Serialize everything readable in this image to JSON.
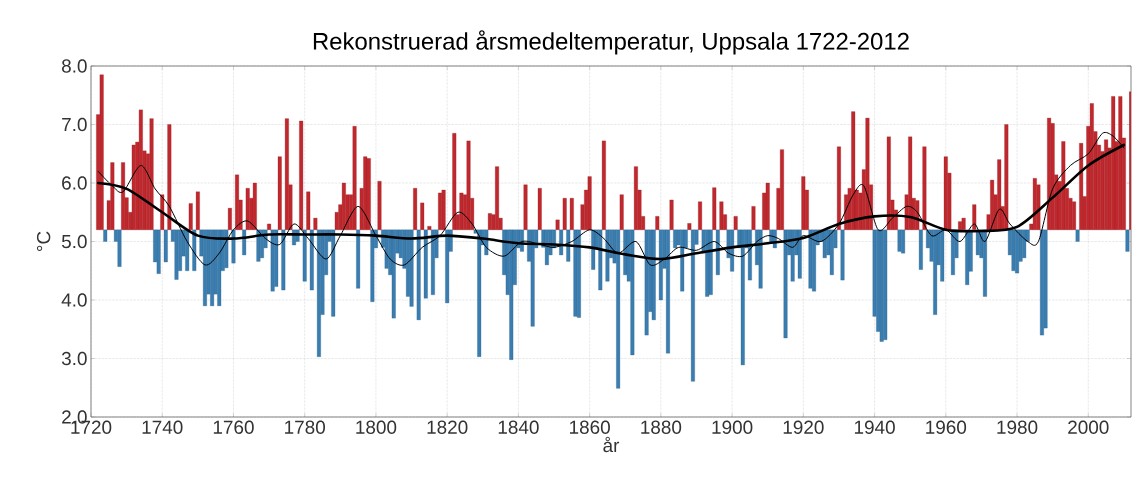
{
  "chart_data": {
    "type": "bar",
    "title": "Rekonstruerad årsmedeltemperatur, Uppsala 1722-2012",
    "xlabel": "år",
    "ylabel": "°C",
    "xlim": [
      1720,
      2012
    ],
    "ylim": [
      2,
      8
    ],
    "xticks": [
      1720,
      1740,
      1760,
      1780,
      1800,
      1820,
      1840,
      1860,
      1880,
      1900,
      1920,
      1940,
      1960,
      1980,
      2000
    ],
    "yticks": [
      {
        "value": 2,
        "label": "2.0"
      },
      {
        "value": 3,
        "label": "3.0"
      },
      {
        "value": 4,
        "label": "4.0"
      },
      {
        "value": 5,
        "label": "5.0"
      },
      {
        "value": 6,
        "label": "6.0"
      },
      {
        "value": 7,
        "label": "7.0"
      },
      {
        "value": 8,
        "label": "8.0"
      }
    ],
    "grid": true,
    "series": [
      {
        "color": "#c0282d",
        "x": [
          1722,
          1723,
          1725,
          1726,
          1729,
          1730,
          1731,
          1732,
          1733,
          1734,
          1735,
          1736,
          1737,
          1740,
          1742,
          1748,
          1750,
          1759,
          1761,
          1762,
          1764,
          1765,
          1766,
          1770,
          1773,
          1775,
          1776,
          1779,
          1781,
          1783,
          1789,
          1790,
          1791,
          1792,
          1793,
          1794,
          1796,
          1797,
          1798,
          1801,
          1811,
          1813,
          1815,
          1818,
          1819,
          1822,
          1823,
          1824,
          1825,
          1826,
          1827,
          1832,
          1833,
          1834,
          1835,
          1842,
          1846,
          1851,
          1853,
          1855,
          1858,
          1859,
          1860,
          1864,
          1869,
          1873,
          1874,
          1875,
          1879,
          1883,
          1888,
          1891,
          1895,
          1897,
          1898,
          1901,
          1906,
          1909,
          1910,
          1913,
          1914,
          1920,
          1921,
          1930,
          1932,
          1933,
          1934,
          1935,
          1936,
          1937,
          1938,
          1939,
          1944,
          1945,
          1946,
          1949,
          1950,
          1951,
          1952,
          1954,
          1960,
          1961,
          1964,
          1965,
          1968,
          1972,
          1973,
          1974,
          1975,
          1976,
          1977,
          1984,
          1985,
          1986,
          1989,
          1990,
          1991,
          1992,
          1993,
          1994,
          1995,
          1996,
          1998,
          1999,
          2000,
          2001,
          2002,
          2003,
          2004,
          2005,
          2006,
          2007,
          2008,
          2009,
          2010,
          2012
        ],
        "values": [
          1.97,
          2.65,
          0.5,
          1.15,
          1.15,
          0.55,
          0.3,
          1.45,
          1.5,
          2.05,
          1.35,
          1.3,
          1.9,
          0.6,
          1.8,
          0.45,
          0.65,
          0.37,
          0.94,
          0.51,
          0.71,
          0.54,
          0.8,
          0.1,
          1.25,
          1.9,
          0.77,
          1.86,
          0.65,
          0.2,
          0.3,
          0.43,
          0.8,
          0.6,
          0.6,
          1.77,
          0.71,
          1.25,
          1.22,
          0.83,
          0.71,
          0.46,
          0.06,
          0.63,
          0.68,
          1.65,
          0.26,
          0.63,
          0.6,
          1.52,
          0.54,
          0.28,
          0.26,
          1.08,
          0.2,
          0.77,
          0.71,
          0.17,
          0.54,
          0.54,
          0.43,
          0.68,
          0.91,
          1.52,
          0.6,
          1.08,
          0.68,
          0.23,
          0.23,
          0.51,
          0.11,
          0.48,
          0.72,
          0.48,
          0.26,
          0.23,
          0.4,
          0.63,
          0.8,
          0.71,
          1.37,
          0.91,
          0.68,
          1.42,
          0.6,
          0.71,
          2.02,
          0.68,
          0.63,
          1.03,
          1.91,
          0.77,
          1.59,
          0.51,
          0.34,
          0.6,
          1.59,
          0.54,
          0.5,
          1.42,
          1.25,
          0.97,
          0.14,
          0.2,
          0.43,
          0.26,
          0.85,
          0.6,
          1.2,
          0.4,
          1.8,
          0.1,
          0.88,
          0.77,
          1.91,
          1.82,
          0.94,
          0.83,
          1.51,
          0.71,
          0.54,
          0.48,
          1.48,
          0.57,
          1.77,
          2.16,
          1.68,
          1.45,
          1.34,
          1.54,
          1.4,
          2.28,
          1.51,
          2.28,
          1.57,
          2.36
        ],
        "base": [
          5.2,
          5.2,
          5.2,
          5.2,
          5.2,
          5.2,
          5.2,
          5.2,
          5.2,
          5.2,
          5.2,
          5.2,
          5.2,
          5.2,
          5.2,
          5.2,
          5.2,
          5.2,
          5.2,
          5.2,
          5.2,
          5.2,
          5.2,
          5.2,
          5.2,
          5.2,
          5.2,
          5.2,
          5.2,
          5.2,
          5.2,
          5.2,
          5.2,
          5.2,
          5.2,
          5.2,
          5.2,
          5.2,
          5.2,
          5.2,
          5.2,
          5.2,
          5.2,
          5.2,
          5.2,
          5.2,
          5.2,
          5.2,
          5.2,
          5.2,
          5.2,
          5.2,
          5.2,
          5.2,
          5.2,
          5.2,
          5.2,
          5.2,
          5.2,
          5.2,
          5.2,
          5.2,
          5.2,
          5.2,
          5.2,
          5.2,
          5.2,
          5.2,
          5.2,
          5.2,
          5.2,
          5.2,
          5.2,
          5.2,
          5.2,
          5.2,
          5.2,
          5.2,
          5.2,
          5.2,
          5.2,
          5.2,
          5.2,
          5.2,
          5.2,
          5.2,
          5.2,
          5.2,
          5.2,
          5.2,
          5.2,
          5.2,
          5.2,
          5.2,
          5.2,
          5.2,
          5.2,
          5.2,
          5.2,
          5.2,
          5.2,
          5.2,
          5.2,
          5.2,
          5.2,
          5.2,
          5.2,
          5.2,
          5.2,
          5.2,
          5.2,
          5.2,
          5.2,
          5.2,
          5.2,
          5.2,
          5.2,
          5.2,
          5.2,
          5.2,
          5.2,
          5.2,
          5.2,
          5.2,
          5.2,
          5.2,
          5.2,
          5.2,
          5.2,
          5.2,
          5.2,
          5.2,
          5.2,
          5.2,
          5.2,
          5.2
        ]
      },
      {
        "color": "#3a7db0",
        "x": [
          1724,
          1727,
          1728,
          1738,
          1739,
          1741,
          1743,
          1744,
          1745,
          1746,
          1747,
          1749,
          1751,
          1752,
          1753,
          1754,
          1755,
          1756,
          1757,
          1758,
          1760,
          1763,
          1767,
          1768,
          1769,
          1771,
          1772,
          1774,
          1777,
          1778,
          1780,
          1782,
          1784,
          1785,
          1786,
          1787,
          1788,
          1795,
          1799,
          1800,
          1802,
          1803,
          1804,
          1805,
          1806,
          1807,
          1808,
          1809,
          1810,
          1812,
          1814,
          1816,
          1817,
          1820,
          1821,
          1828,
          1829,
          1830,
          1831,
          1836,
          1837,
          1838,
          1839,
          1840,
          1841,
          1843,
          1844,
          1845,
          1847,
          1848,
          1849,
          1850,
          1852,
          1854,
          1856,
          1857,
          1861,
          1862,
          1863,
          1865,
          1866,
          1867,
          1868,
          1870,
          1871,
          1872,
          1876,
          1877,
          1878,
          1880,
          1881,
          1882,
          1884,
          1885,
          1886,
          1887,
          1889,
          1890,
          1892,
          1893,
          1894,
          1896,
          1899,
          1900,
          1902,
          1903,
          1904,
          1905,
          1907,
          1908,
          1911,
          1912,
          1915,
          1916,
          1917,
          1918,
          1919,
          1922,
          1923,
          1924,
          1925,
          1926,
          1927,
          1928,
          1929,
          1931,
          1940,
          1941,
          1942,
          1943,
          1947,
          1948,
          1953,
          1955,
          1956,
          1957,
          1958,
          1959,
          1962,
          1963,
          1966,
          1967,
          1969,
          1970,
          1971,
          1978,
          1979,
          1980,
          1981,
          1982,
          1983,
          1987,
          1988,
          1997,
          2011
        ],
        "values": [
          -0.2,
          -0.2,
          -0.63,
          -0.55,
          -0.75,
          -0.55,
          -0.2,
          -0.85,
          -0.7,
          -0.45,
          -0.7,
          -0.7,
          -0.45,
          -1.3,
          -1.1,
          -1.3,
          -1.1,
          -1.3,
          -0.7,
          -0.65,
          -0.57,
          -0.43,
          -0.54,
          -0.48,
          -0.31,
          -1.05,
          -0.97,
          -1.03,
          -0.26,
          -0.2,
          -0.88,
          -1.03,
          -2.17,
          -1.45,
          -0.77,
          -0.2,
          -1.48,
          -1.0,
          -1.23,
          -0.31,
          -0.3,
          -0.66,
          -0.77,
          -1.51,
          -0.4,
          -0.48,
          -0.66,
          -1.14,
          -1.31,
          -1.54,
          -1.17,
          -1.11,
          -0.48,
          -1.25,
          -0.37,
          -0.06,
          -2.17,
          -0.26,
          -0.43,
          -0.77,
          -1.11,
          -2.22,
          -0.94,
          -0.31,
          -0.37,
          -0.54,
          -1.65,
          -0.31,
          -0.3,
          -0.6,
          -0.43,
          -0.31,
          -0.43,
          -0.54,
          -1.48,
          -1.5,
          -0.68,
          -0.31,
          -1.03,
          -0.88,
          -0.48,
          -0.57,
          -2.71,
          -0.77,
          -0.88,
          -2.14,
          -1.8,
          -1.4,
          -1.54,
          -1.2,
          -0.66,
          -2.11,
          -0.31,
          -0.26,
          -1.05,
          -0.31,
          -2.59,
          -0.25,
          -0.4,
          -1.14,
          -1.11,
          -0.77,
          -0.48,
          -0.71,
          -0.31,
          -2.31,
          -0.31,
          -0.86,
          -0.6,
          -1.0,
          -0.23,
          -0.31,
          -1.85,
          -0.43,
          -0.88,
          -0.43,
          -0.83,
          -1.0,
          -1.05,
          -0.26,
          -0.2,
          -0.48,
          -0.43,
          -0.77,
          -0.31,
          -0.86,
          -1.48,
          -1.74,
          -1.91,
          -1.88,
          -0.37,
          -0.4,
          -0.68,
          -0.31,
          -0.54,
          -1.45,
          -0.6,
          -0.88,
          -0.77,
          -0.48,
          -0.94,
          -0.71,
          -0.43,
          -0.48,
          -1.14,
          -0.43,
          -0.7,
          -0.74,
          -0.54,
          -0.48,
          -0.2,
          -1.8,
          -1.68,
          -0.2,
          -0.37
        ],
        "base": [
          5.2,
          5.2,
          5.2,
          5.2,
          5.2,
          5.2,
          5.2,
          5.2,
          5.2,
          5.2,
          5.2,
          5.2,
          5.2,
          5.2,
          5.2,
          5.2,
          5.2,
          5.2,
          5.2,
          5.2,
          5.2,
          5.2,
          5.2,
          5.2,
          5.2,
          5.2,
          5.2,
          5.2,
          5.2,
          5.2,
          5.2,
          5.2,
          5.2,
          5.2,
          5.2,
          5.2,
          5.2,
          5.2,
          5.2,
          5.2,
          5.2,
          5.2,
          5.2,
          5.2,
          5.2,
          5.2,
          5.2,
          5.2,
          5.2,
          5.2,
          5.2,
          5.2,
          5.2,
          5.2,
          5.2,
          5.2,
          5.2,
          5.2,
          5.2,
          5.2,
          5.2,
          5.2,
          5.2,
          5.2,
          5.2,
          5.2,
          5.2,
          5.2,
          5.2,
          5.2,
          5.2,
          5.2,
          5.2,
          5.2,
          5.2,
          5.2,
          5.2,
          5.2,
          5.2,
          5.2,
          5.2,
          5.2,
          5.2,
          5.2,
          5.2,
          5.2,
          5.2,
          5.2,
          5.2,
          5.2,
          5.2,
          5.2,
          5.2,
          5.2,
          5.2,
          5.2,
          5.2,
          5.2,
          5.2,
          5.2,
          5.2,
          5.2,
          5.2,
          5.2,
          5.2,
          5.2,
          5.2,
          5.2,
          5.2,
          5.2,
          5.2,
          5.2,
          5.2,
          5.2,
          5.2,
          5.2,
          5.2,
          5.2,
          5.2,
          5.2,
          5.2,
          5.2,
          5.2,
          5.2,
          5.2,
          5.2,
          5.2,
          5.2,
          5.2,
          5.2,
          5.2,
          5.2,
          5.2,
          5.2,
          5.2,
          5.2,
          5.2,
          5.2,
          5.2,
          5.2,
          5.2,
          5.2,
          5.2,
          5.2,
          5.2,
          5.2,
          5.2,
          5.2,
          5.2,
          5.2,
          5.2,
          5.2,
          5.2,
          5.2,
          5.2
        ]
      },
      {
        "type": "line",
        "color": "#000000",
        "x": [
          1722,
          1726,
          1729,
          1734,
          1738,
          1742,
          1747,
          1752,
          1756,
          1760,
          1764,
          1769,
          1773,
          1777,
          1781,
          1786,
          1790,
          1795,
          1800,
          1804,
          1808,
          1813,
          1818,
          1823,
          1827,
          1831,
          1836,
          1841,
          1846,
          1850,
          1855,
          1860,
          1864,
          1868,
          1873,
          1877,
          1881,
          1885,
          1890,
          1895,
          1899,
          1903,
          1907,
          1910,
          1913,
          1917,
          1920,
          1925,
          1930,
          1934,
          1937,
          1941,
          1945,
          1949,
          1952,
          1956,
          1960,
          1964,
          1968,
          1971,
          1975,
          1978,
          1983,
          1986,
          1990,
          1995,
          2000,
          2004,
          2007,
          2010
        ],
        "values": [
          6.2,
          5.95,
          5.85,
          6.3,
          5.9,
          5.6,
          5.0,
          4.6,
          4.8,
          5.2,
          5.35,
          5.05,
          4.95,
          5.3,
          5.05,
          4.7,
          5.1,
          5.6,
          5.1,
          4.7,
          4.6,
          4.9,
          5.1,
          5.5,
          5.3,
          4.9,
          4.75,
          5.0,
          4.95,
          4.9,
          5.0,
          5.2,
          5.05,
          4.8,
          5.0,
          4.6,
          4.7,
          4.9,
          4.85,
          5.0,
          4.8,
          4.75,
          5.0,
          5.1,
          5.05,
          4.9,
          5.1,
          5.0,
          5.3,
          5.8,
          5.95,
          5.2,
          5.4,
          5.6,
          5.5,
          5.1,
          5.2,
          5.0,
          5.3,
          5.0,
          5.55,
          5.3,
          5.0,
          5.0,
          5.9,
          6.3,
          6.5,
          6.85,
          6.8,
          6.6
        ]
      },
      {
        "type": "line",
        "color": "#000000",
        "x": [
          1722,
          1730,
          1740,
          1750,
          1760,
          1770,
          1780,
          1790,
          1800,
          1810,
          1820,
          1830,
          1840,
          1850,
          1860,
          1870,
          1880,
          1890,
          1900,
          1910,
          1920,
          1930,
          1940,
          1950,
          1960,
          1970,
          1980,
          1990,
          2000,
          2010
        ],
        "values": [
          6.0,
          5.9,
          5.5,
          5.1,
          5.05,
          5.12,
          5.12,
          5.12,
          5.1,
          5.05,
          5.1,
          5.05,
          4.97,
          4.95,
          4.9,
          4.78,
          4.7,
          4.8,
          4.9,
          4.97,
          5.06,
          5.3,
          5.43,
          5.42,
          5.2,
          5.18,
          5.25,
          5.75,
          6.3,
          6.65
        ]
      }
    ]
  }
}
